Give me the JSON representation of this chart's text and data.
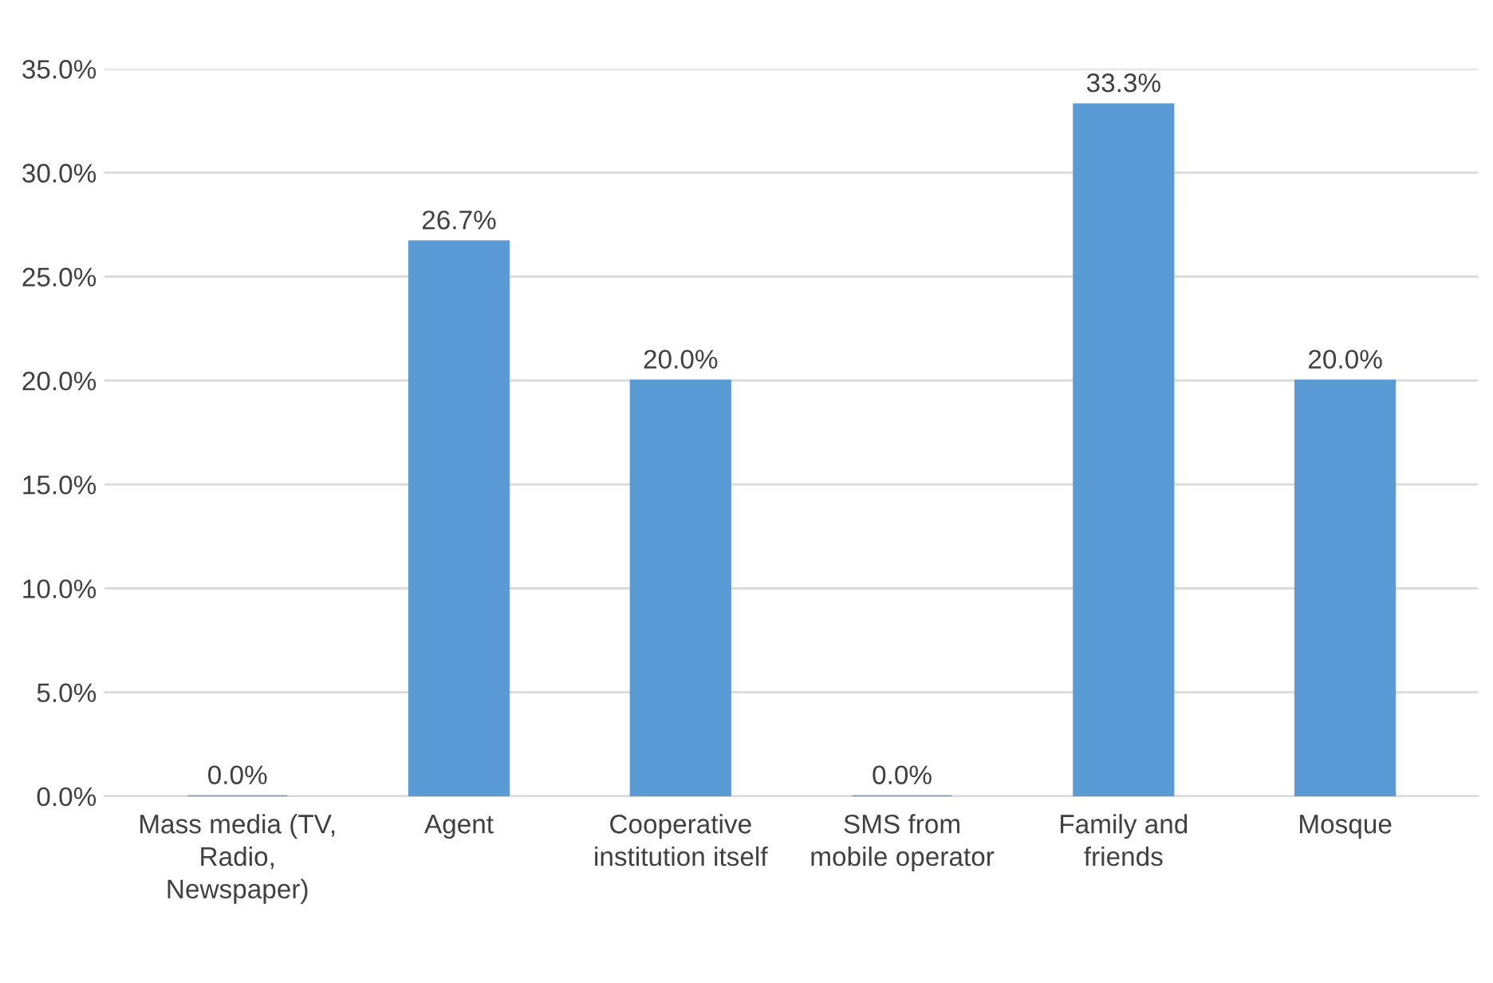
{
  "chart_data": {
    "type": "bar",
    "categories": [
      "Mass media (TV,\nRadio,\nNewspaper)",
      "Agent",
      "Cooperative\ninstitution itself",
      "SMS from\nmobile operator",
      "Family and\nfriends",
      "Mosque"
    ],
    "values": [
      0,
      26.7,
      20.0,
      0,
      33.3,
      20.0
    ],
    "value_labels": [
      "0.0%",
      "26.7%",
      "20.0%",
      "0.0%",
      "33.3%",
      "20.0%"
    ],
    "color": "#5b9bd5",
    "ylim": [
      0,
      35
    ],
    "yticks": [
      {
        "value": 0,
        "label": "0.0%"
      },
      {
        "value": 5,
        "label": "5.0%"
      },
      {
        "value": 10,
        "label": "10.0%"
      },
      {
        "value": 15,
        "label": "15.0%"
      },
      {
        "value": 20,
        "label": "20.0%"
      },
      {
        "value": 25,
        "label": "25.0%"
      },
      {
        "value": 30,
        "label": "30.0%"
      },
      {
        "value": 35,
        "label": "35.0%"
      }
    ],
    "grid": "y"
  }
}
